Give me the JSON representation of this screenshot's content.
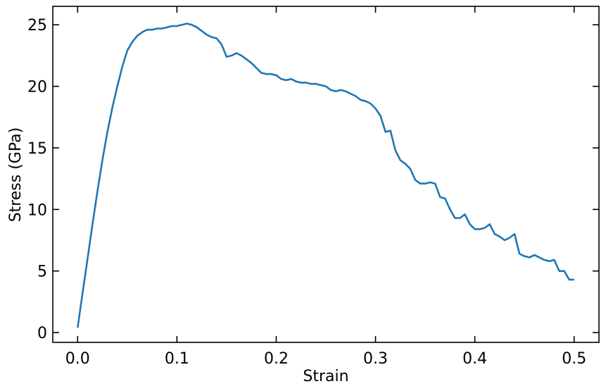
{
  "chart_data": {
    "type": "line",
    "title": "",
    "xlabel": "Strain",
    "ylabel": "Stress (GPa)",
    "xlim": [
      -0.025,
      0.525
    ],
    "ylim": [
      -0.8,
      26.5
    ],
    "xticks": [
      0.0,
      0.1,
      0.2,
      0.3,
      0.4,
      0.5
    ],
    "xtick_labels": [
      "0.0",
      "0.1",
      "0.2",
      "0.3",
      "0.4",
      "0.5"
    ],
    "yticks": [
      0,
      5,
      10,
      15,
      20,
      25
    ],
    "ytick_labels": [
      "0",
      "5",
      "10",
      "15",
      "20",
      "25"
    ],
    "grid": false,
    "legend": "none",
    "series": [
      {
        "color": "#1f77b4",
        "x": [
          0.0,
          0.005,
          0.01,
          0.015,
          0.02,
          0.025,
          0.03,
          0.035,
          0.04,
          0.045,
          0.05,
          0.055,
          0.06,
          0.065,
          0.07,
          0.075,
          0.08,
          0.085,
          0.09,
          0.095,
          0.1,
          0.105,
          0.11,
          0.115,
          0.12,
          0.125,
          0.13,
          0.135,
          0.14,
          0.145,
          0.15,
          0.155,
          0.16,
          0.165,
          0.17,
          0.175,
          0.18,
          0.185,
          0.19,
          0.195,
          0.2,
          0.205,
          0.21,
          0.215,
          0.22,
          0.225,
          0.23,
          0.235,
          0.24,
          0.245,
          0.25,
          0.255,
          0.26,
          0.265,
          0.27,
          0.275,
          0.28,
          0.285,
          0.29,
          0.295,
          0.3,
          0.305,
          0.31,
          0.315,
          0.32,
          0.325,
          0.33,
          0.335,
          0.34,
          0.345,
          0.35,
          0.355,
          0.36,
          0.365,
          0.37,
          0.375,
          0.38,
          0.385,
          0.39,
          0.395,
          0.4,
          0.405,
          0.41,
          0.415,
          0.42,
          0.425,
          0.43,
          0.435,
          0.44,
          0.445,
          0.45,
          0.455,
          0.46,
          0.465,
          0.47,
          0.475,
          0.48,
          0.485,
          0.49,
          0.495,
          0.5
        ],
        "y": [
          0.4,
          3.2,
          6.0,
          8.8,
          11.5,
          14.0,
          16.3,
          18.3,
          20.0,
          21.6,
          22.9,
          23.6,
          24.1,
          24.4,
          24.6,
          24.6,
          24.7,
          24.7,
          24.8,
          24.9,
          24.9,
          25.0,
          25.1,
          25.0,
          24.8,
          24.5,
          24.2,
          24.0,
          23.9,
          23.4,
          22.4,
          22.5,
          22.7,
          22.5,
          22.2,
          21.9,
          21.5,
          21.1,
          21.0,
          21.0,
          20.9,
          20.6,
          20.5,
          20.6,
          20.4,
          20.3,
          20.3,
          20.2,
          20.2,
          20.1,
          20.0,
          19.7,
          19.6,
          19.7,
          19.6,
          19.4,
          19.2,
          18.9,
          18.8,
          18.6,
          18.2,
          17.6,
          16.3,
          16.4,
          14.8,
          14.0,
          13.7,
          13.3,
          12.4,
          12.1,
          12.1,
          12.2,
          12.1,
          11.0,
          10.9,
          10.0,
          9.3,
          9.3,
          9.6,
          8.8,
          8.4,
          8.4,
          8.5,
          8.8,
          8.0,
          7.8,
          7.5,
          7.7,
          8.0,
          6.4,
          6.2,
          6.1,
          6.3,
          6.1,
          5.9,
          5.8,
          5.9,
          5.0,
          5.0,
          4.3,
          4.3
        ]
      }
    ]
  }
}
